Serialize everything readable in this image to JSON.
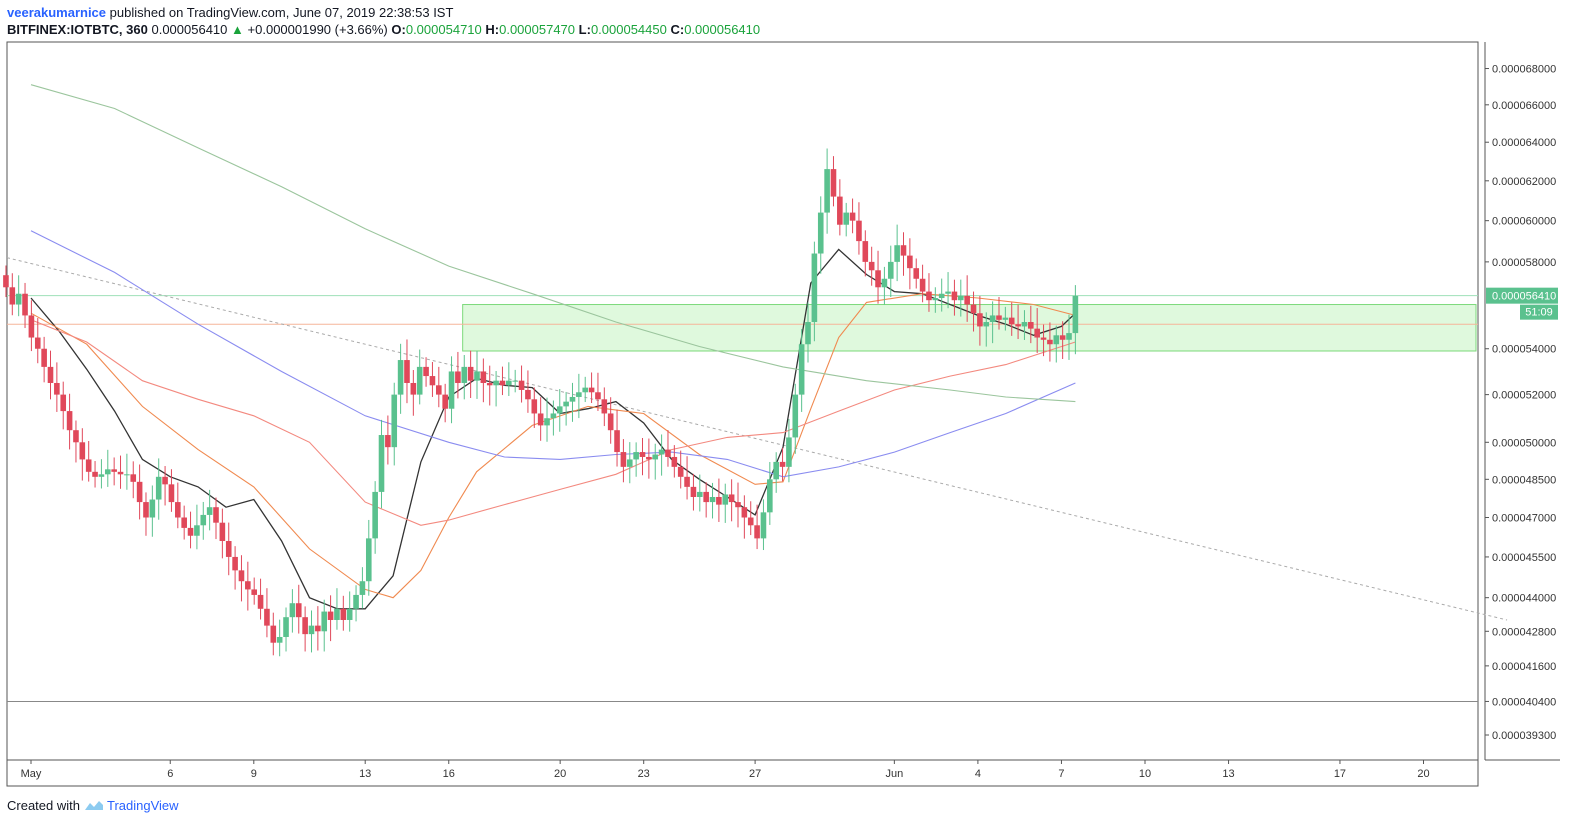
{
  "header": {
    "publisher": "veerakumarnice",
    "published_text": "published on TradingView.com, June 07, 2019 22:38:53 IST",
    "symbol": "BITFINEX:IOTBTC, 360",
    "last": "0.000056410",
    "change": "+0.000001990 (+3.66%)",
    "o_label": "O:",
    "o_value": "0.000054710",
    "h_label": "H:",
    "h_value": "0.000057470",
    "l_label": "L:",
    "l_value": "0.000054450",
    "c_label": "C:",
    "c_value": "0.000056410"
  },
  "footer": {
    "created_with": "Created with",
    "brand": "TradingView"
  },
  "colors": {
    "up": "#5ac18e",
    "down": "#e0485a",
    "zone_fill": "#d7f7d4",
    "zone_stroke": "#7bd97a",
    "ma_black": "#333333",
    "ma_orange": "#f08a50",
    "ma_salmon": "#f3897f",
    "ma_blue": "#8a8cf0",
    "ma_green": "#9bc59d",
    "trend": "#aaaaaa"
  },
  "chart_data": {
    "type": "candlestick",
    "y_scale": "log",
    "yrange": [
      3.85e-05,
      6.95e-05
    ],
    "x_range_days": [
      0,
      53
    ],
    "y_ticks": [
      "0.000068000",
      "0.000066000",
      "0.000064000",
      "0.000062000",
      "0.000060000",
      "0.000058000",
      "0.000054000",
      "0.000052000",
      "0.000050000",
      "0.000048500",
      "0.000047000",
      "0.000045500",
      "0.000044000",
      "0.000042800",
      "0.000041600",
      "0.000040400",
      "0.000039300"
    ],
    "x_ticks": [
      {
        "day": 0,
        "label": "May"
      },
      {
        "day": 5,
        "label": "6"
      },
      {
        "day": 8,
        "label": "9"
      },
      {
        "day": 12,
        "label": "13"
      },
      {
        "day": 15,
        "label": "16"
      },
      {
        "day": 19,
        "label": "20"
      },
      {
        "day": 22,
        "label": "23"
      },
      {
        "day": 26,
        "label": "27"
      },
      {
        "day": 31,
        "label": "Jun"
      },
      {
        "day": 34,
        "label": "4"
      },
      {
        "day": 37,
        "label": "7"
      },
      {
        "day": 40,
        "label": "10"
      },
      {
        "day": 43,
        "label": "13"
      },
      {
        "day": 47,
        "label": "17"
      },
      {
        "day": 50,
        "label": "20"
      }
    ],
    "last_price_label": "0.000056410",
    "countdown_label": "51:09",
    "last_price": 5.641e-05,
    "support_level": 4.04e-05,
    "orange_level": 5.51e-05,
    "zone": {
      "start_day": 15.5,
      "top": 5.6e-05,
      "bottom": 5.39e-05
    },
    "trendline": [
      {
        "day": 0,
        "price": 5.82e-05
      },
      {
        "day": 53,
        "price": 4.32e-05
      }
    ],
    "closes": [
      5.68e-05,
      5.6e-05,
      5.65e-05,
      5.55e-05,
      5.45e-05,
      5.4e-05,
      5.32e-05,
      5.25e-05,
      5.2e-05,
      5.13e-05,
      5.05e-05,
      5e-05,
      4.93e-05,
      4.88e-05,
      4.86e-05,
      4.87e-05,
      4.89e-05,
      4.88e-05,
      4.87e-05,
      4.87e-05,
      4.84e-05,
      4.76e-05,
      4.7e-05,
      4.77e-05,
      4.86e-05,
      4.83e-05,
      4.76e-05,
      4.7e-05,
      4.66e-05,
      4.63e-05,
      4.67e-05,
      4.71e-05,
      4.74e-05,
      4.68e-05,
      4.61e-05,
      4.55e-05,
      4.5e-05,
      4.46e-05,
      4.43e-05,
      4.41e-05,
      4.36e-05,
      4.3e-05,
      4.24e-05,
      4.26e-05,
      4.33e-05,
      4.38e-05,
      4.33e-05,
      4.27e-05,
      4.3e-05,
      4.28e-05,
      4.35e-05,
      4.32e-05,
      4.36e-05,
      4.32e-05,
      4.36e-05,
      4.41e-05,
      4.46e-05,
      4.62e-05,
      4.8e-05,
      5.03e-05,
      4.98e-05,
      5.2e-05,
      5.35e-05,
      5.25e-05,
      5.2e-05,
      5.32e-05,
      5.28e-05,
      5.24e-05,
      5.2e-05,
      5.14e-05,
      5.3e-05,
      5.25e-05,
      5.32e-05,
      5.26e-05,
      5.3e-05,
      5.25e-05,
      5.24e-05,
      5.26e-05,
      5.24e-05,
      5.26e-05,
      5.26e-05,
      5.22e-05,
      5.18e-05,
      5.12e-05,
      5.07e-05,
      5.1e-05,
      5.12e-05,
      5.15e-05,
      5.17e-05,
      5.19e-05,
      5.21e-05,
      5.23e-05,
      5.21e-05,
      5.18e-05,
      5.12e-05,
      5.05e-05,
      4.96e-05,
      4.9e-05,
      4.93e-05,
      4.96e-05,
      4.94e-05,
      4.93e-05,
      4.95e-05,
      4.97e-05,
      4.94e-05,
      4.9e-05,
      4.86e-05,
      4.82e-05,
      4.78e-05,
      4.8e-05,
      4.76e-05,
      4.78e-05,
      4.75e-05,
      4.79e-05,
      4.76e-05,
      4.74e-05,
      4.7e-05,
      4.67e-05,
      4.62e-05,
      4.72e-05,
      4.85e-05,
      4.92e-05,
      4.9e-05,
      5.02e-05,
      5.2e-05,
      5.42e-05,
      5.52e-05,
      5.84e-05,
      6.04e-05,
      6.26e-05,
      6.12e-05,
      5.98e-05,
      6.04e-05,
      6e-05,
      5.9e-05,
      5.8e-05,
      5.76e-05,
      5.68e-05,
      5.72e-05,
      5.8e-05,
      5.88e-05,
      5.83e-05,
      5.77e-05,
      5.72e-05,
      5.66e-05,
      5.62e-05,
      5.63e-05,
      5.65e-05,
      5.66e-05,
      5.62e-05,
      5.64e-05,
      5.6e-05,
      5.56e-05,
      5.5e-05,
      5.52e-05,
      5.55e-05,
      5.53e-05,
      5.54e-05,
      5.51e-05,
      5.5e-05,
      5.52e-05,
      5.49e-05,
      5.45e-05,
      5.44e-05,
      5.42e-05,
      5.46e-05,
      5.44e-05,
      5.47e-05,
      5.64e-05
    ],
    "series": [
      {
        "name": "",
        "color": "#333333",
        "points": [
          [
            0,
            5.63e-05
          ],
          [
            1,
            5.48e-05
          ],
          [
            2,
            5.31e-05
          ],
          [
            3,
            5.13e-05
          ],
          [
            4,
            4.93e-05
          ],
          [
            5,
            4.86e-05
          ],
          [
            6,
            4.82e-05
          ],
          [
            7,
            4.74e-05
          ],
          [
            8,
            4.77e-05
          ],
          [
            9,
            4.61e-05
          ],
          [
            10,
            4.4e-05
          ],
          [
            11,
            4.36e-05
          ],
          [
            12,
            4.36e-05
          ],
          [
            13,
            4.48e-05
          ],
          [
            14,
            4.92e-05
          ],
          [
            15,
            5.19e-05
          ],
          [
            16,
            5.27e-05
          ],
          [
            17,
            5.24e-05
          ],
          [
            18,
            5.23e-05
          ],
          [
            19,
            5.12e-05
          ],
          [
            20,
            5.14e-05
          ],
          [
            21,
            5.17e-05
          ],
          [
            22,
            5.08e-05
          ],
          [
            23,
            4.93e-05
          ],
          [
            24,
            4.85e-05
          ],
          [
            25,
            4.78e-05
          ],
          [
            26,
            4.71e-05
          ],
          [
            27,
            4.98e-05
          ],
          [
            28,
            5.7e-05
          ],
          [
            29,
            5.86e-05
          ],
          [
            30,
            5.74e-05
          ],
          [
            31,
            5.66e-05
          ],
          [
            32,
            5.65e-05
          ],
          [
            33,
            5.6e-05
          ],
          [
            34,
            5.55e-05
          ],
          [
            35,
            5.51e-05
          ],
          [
            36,
            5.46e-05
          ],
          [
            37,
            5.5e-05
          ],
          [
            37.5,
            5.56e-05
          ]
        ]
      },
      {
        "name": "",
        "color": "#f08a50",
        "points": [
          [
            0,
            5.56e-05
          ],
          [
            2,
            5.42e-05
          ],
          [
            4,
            5.15e-05
          ],
          [
            6,
            4.97e-05
          ],
          [
            8,
            4.82e-05
          ],
          [
            10,
            4.58e-05
          ],
          [
            12,
            4.43e-05
          ],
          [
            13,
            4.4e-05
          ],
          [
            14,
            4.5e-05
          ],
          [
            15,
            4.7e-05
          ],
          [
            16,
            4.88e-05
          ],
          [
            18,
            5.07e-05
          ],
          [
            20,
            5.15e-05
          ],
          [
            22,
            5.12e-05
          ],
          [
            24,
            4.95e-05
          ],
          [
            26,
            4.83e-05
          ],
          [
            27,
            4.84e-05
          ],
          [
            28,
            5.14e-05
          ],
          [
            29,
            5.45e-05
          ],
          [
            30,
            5.61e-05
          ],
          [
            32,
            5.65e-05
          ],
          [
            34,
            5.63e-05
          ],
          [
            36,
            5.6e-05
          ],
          [
            37.5,
            5.55e-05
          ]
        ]
      },
      {
        "name": "",
        "color": "#f3897f",
        "points": [
          [
            0,
            5.53e-05
          ],
          [
            2,
            5.43e-05
          ],
          [
            4,
            5.26e-05
          ],
          [
            6,
            5.18e-05
          ],
          [
            8,
            5.11e-05
          ],
          [
            10,
            5e-05
          ],
          [
            12,
            4.76e-05
          ],
          [
            14,
            4.67e-05
          ],
          [
            15,
            4.69e-05
          ],
          [
            17,
            4.75e-05
          ],
          [
            19,
            4.81e-05
          ],
          [
            21,
            4.87e-05
          ],
          [
            23,
            4.97e-05
          ],
          [
            25,
            5.02e-05
          ],
          [
            27,
            5.04e-05
          ],
          [
            29,
            5.13e-05
          ],
          [
            31,
            5.22e-05
          ],
          [
            33,
            5.28e-05
          ],
          [
            35,
            5.33e-05
          ],
          [
            37.5,
            5.43e-05
          ]
        ]
      },
      {
        "name": "",
        "color": "#8a8cf0",
        "points": [
          [
            0,
            5.95e-05
          ],
          [
            3,
            5.75e-05
          ],
          [
            6,
            5.51e-05
          ],
          [
            9,
            5.3e-05
          ],
          [
            12,
            5.11e-05
          ],
          [
            15,
            5e-05
          ],
          [
            17,
            4.94e-05
          ],
          [
            19,
            4.93e-05
          ],
          [
            21,
            4.95e-05
          ],
          [
            23,
            4.96e-05
          ],
          [
            25,
            4.93e-05
          ],
          [
            27,
            4.86e-05
          ],
          [
            29,
            4.9e-05
          ],
          [
            31,
            4.96e-05
          ],
          [
            33,
            5.04e-05
          ],
          [
            35,
            5.12e-05
          ],
          [
            37.5,
            5.25e-05
          ]
        ]
      },
      {
        "name": "",
        "color": "#9bc59d",
        "points": [
          [
            0,
            6.71e-05
          ],
          [
            3,
            6.58e-05
          ],
          [
            6,
            6.37e-05
          ],
          [
            9,
            6.17e-05
          ],
          [
            12,
            5.96e-05
          ],
          [
            15,
            5.78e-05
          ],
          [
            18,
            5.65e-05
          ],
          [
            21,
            5.52e-05
          ],
          [
            24,
            5.41e-05
          ],
          [
            27,
            5.32e-05
          ],
          [
            30,
            5.26e-05
          ],
          [
            33,
            5.22e-05
          ],
          [
            35,
            5.19e-05
          ],
          [
            37.5,
            5.17e-05
          ]
        ]
      }
    ]
  }
}
